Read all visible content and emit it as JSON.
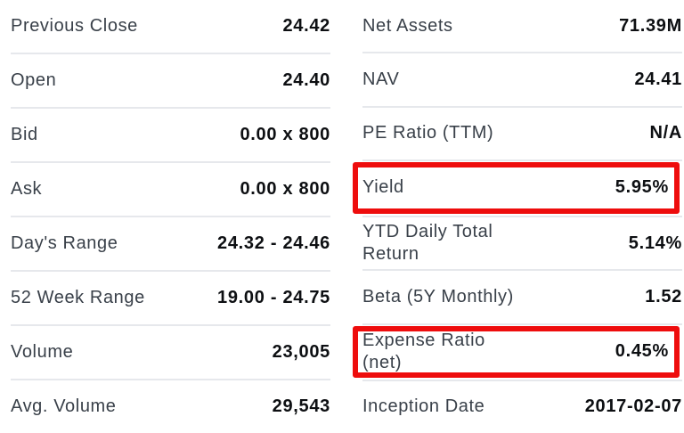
{
  "colors": {
    "highlight_red": "#ee0d0d",
    "label_text": "#394049",
    "value_text": "#0d0f12",
    "divider": "#e6e8ec",
    "background": "#ffffff"
  },
  "left_column": {
    "rows": [
      {
        "label": "Previous Close",
        "value": "24.42"
      },
      {
        "label": "Open",
        "value": "24.40"
      },
      {
        "label": "Bid",
        "value": "0.00 x 800"
      },
      {
        "label": "Ask",
        "value": "0.00 x 800"
      },
      {
        "label": "Day's Range",
        "value": "24.32 - 24.46"
      },
      {
        "label": "52 Week Range",
        "value": "19.00 - 24.75"
      },
      {
        "label": "Volume",
        "value": "23,005"
      },
      {
        "label": "Avg. Volume",
        "value": "29,543"
      }
    ]
  },
  "right_column": {
    "rows": [
      {
        "label": "Net Assets",
        "value": "71.39M"
      },
      {
        "label": "NAV",
        "value": "24.41"
      },
      {
        "label": "PE Ratio (TTM)",
        "value": "N/A"
      },
      {
        "label": "Yield",
        "value": "5.95%",
        "highlighted": true
      },
      {
        "label": "YTD Daily Total Return",
        "value": "5.14%"
      },
      {
        "label": "Beta (5Y Monthly)",
        "value": "1.52"
      },
      {
        "label": "Expense Ratio (net)",
        "value": "0.45%",
        "highlighted": true
      },
      {
        "label": "Inception Date",
        "value": "2017-02-07"
      }
    ]
  }
}
